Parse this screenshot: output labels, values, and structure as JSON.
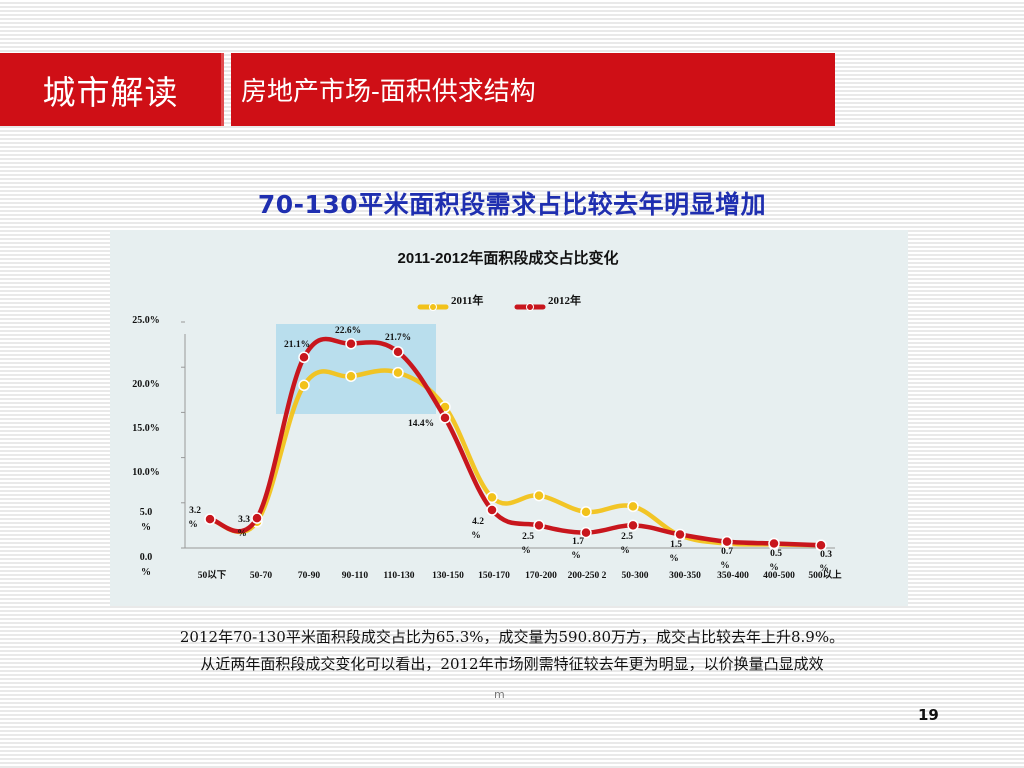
{
  "header": {
    "section_title": "城市解读",
    "slide_title": "房地产市场-面积供求结构"
  },
  "headline": "70-130平米面积段需求占比较去年明显增加",
  "chart_data": {
    "type": "line",
    "title": "2011-2012年面积段成交占比变化",
    "categories": [
      "50以下",
      "50-70",
      "70-90",
      "90-110",
      "110-130",
      "130-150",
      "150-170",
      "170-200",
      "200-250",
      "250-300",
      "300-350",
      "350-400",
      "400-500",
      "500以上"
    ],
    "category_labels": [
      "50以下",
      "50-70",
      "70-90",
      "90-110",
      "110-130",
      "130-150",
      "150-170",
      "170-200",
      "200-250 2",
      "50-300",
      "300-350",
      "350-400",
      "400-500",
      "500以上"
    ],
    "series": [
      {
        "name": "2011年",
        "color": "#f2c21a",
        "values": [
          3.2,
          2.9,
          18.0,
          19.0,
          19.4,
          15.6,
          5.6,
          5.8,
          4.0,
          4.6,
          1.4,
          0.5,
          0.4,
          0.3
        ]
      },
      {
        "name": "2012年",
        "color": "#c8161d",
        "values": [
          3.2,
          3.3,
          21.1,
          22.6,
          21.7,
          14.4,
          4.2,
          2.5,
          1.7,
          2.5,
          1.5,
          0.7,
          0.5,
          0.3
        ]
      }
    ],
    "y_ticks": [
      "25.0%",
      "20.0%",
      "15.0%",
      "10.0%",
      "5.0%",
      "0.0%"
    ],
    "ylim": [
      0,
      25
    ],
    "data_labels": [
      "3.2%",
      "3.3%",
      "21.1%",
      "22.6%",
      "21.7%",
      "14.4%",
      "4.2%",
      "2.5%",
      "1.7%",
      "2.5%",
      "1.5%",
      "0.7%",
      "0.5%",
      "0.3%"
    ],
    "highlight_range": [
      "70-90",
      "110-130"
    ],
    "legend_position": "top",
    "grid": false
  },
  "footnotes": {
    "line1": "2012年70-130平米面积段成交占比为65.3%，成交量为590.80万方，成交占比较去年上升8.9%。",
    "line2": "从近两年面积段成交变化可以看出，2012年市场刚需特征较去年更为明显，以价换量凸显成效"
  },
  "watermark": "m",
  "page_number": "19"
}
